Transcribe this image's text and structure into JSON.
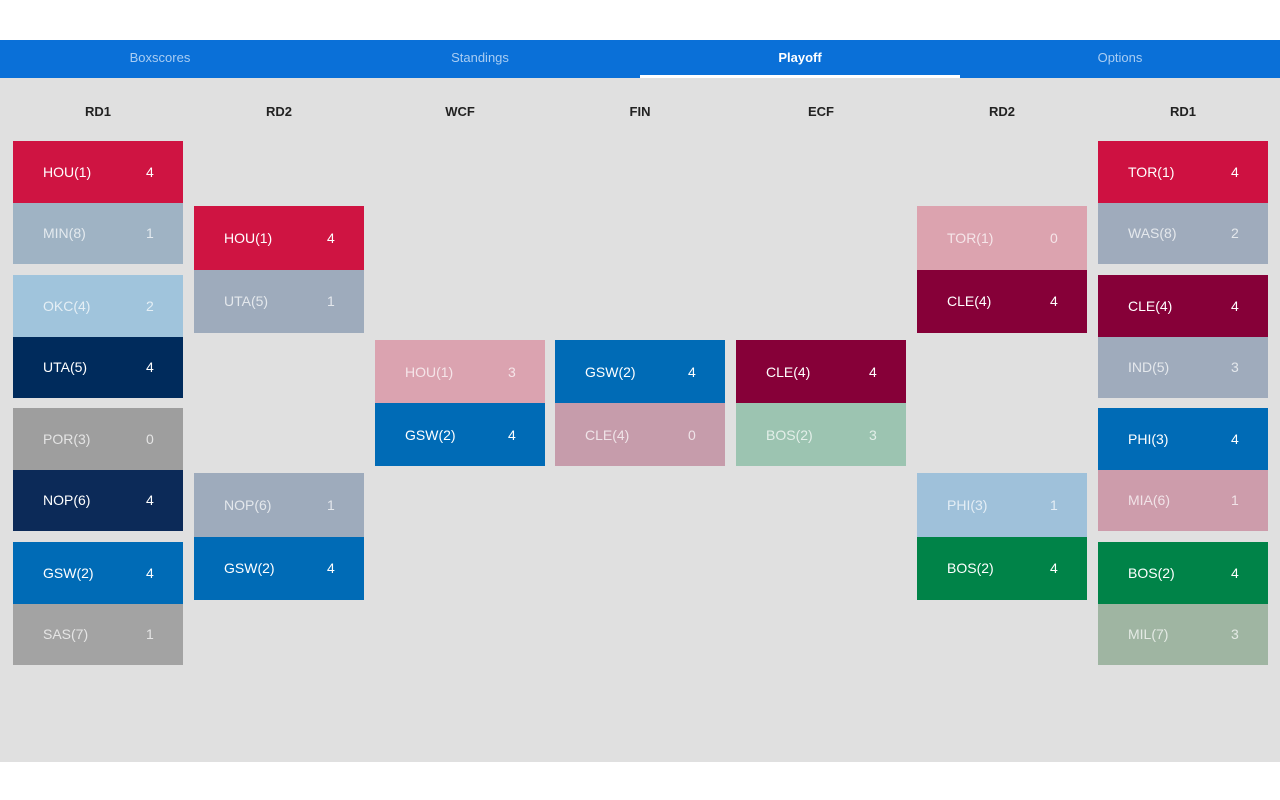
{
  "tabs": [
    {
      "label": "Boxscores",
      "active": false
    },
    {
      "label": "Standings",
      "active": false
    },
    {
      "label": "Playoff",
      "active": true
    },
    {
      "label": "Options",
      "active": false
    }
  ],
  "columns": [
    {
      "header": "RD1",
      "matchups": [
        {
          "teams": [
            {
              "name": "HOU(1)",
              "score": 4,
              "color": "#cf1442",
              "winner": true
            },
            {
              "name": "MIN(8)",
              "score": 1,
              "color": "#9fb3c4",
              "winner": false
            }
          ]
        },
        {
          "teams": [
            {
              "name": "OKC(4)",
              "score": 2,
              "color": "#a0c4dc",
              "winner": false
            },
            {
              "name": "UTA(5)",
              "score": 4,
              "color": "#002b5c",
              "winner": true
            }
          ]
        },
        {
          "teams": [
            {
              "name": "POR(3)",
              "score": 0,
              "color": "#9e9e9e",
              "winner": false
            },
            {
              "name": "NOP(6)",
              "score": 4,
              "color": "#0c2a58",
              "winner": true
            }
          ]
        },
        {
          "teams": [
            {
              "name": "GSW(2)",
              "score": 4,
              "color": "#006bb6",
              "winner": true
            },
            {
              "name": "SAS(7)",
              "score": 1,
              "color": "#a3a3a3",
              "winner": false
            }
          ]
        }
      ]
    },
    {
      "header": "RD2",
      "matchups": [
        {
          "teams": [
            {
              "name": "HOU(1)",
              "score": 4,
              "color": "#cf1442",
              "winner": true
            },
            {
              "name": "UTA(5)",
              "score": 1,
              "color": "#9eabbc",
              "winner": false
            }
          ]
        },
        {
          "teams": [
            {
              "name": "NOP(6)",
              "score": 1,
              "color": "#9eabbc",
              "winner": false
            },
            {
              "name": "GSW(2)",
              "score": 4,
              "color": "#006bb6",
              "winner": true
            }
          ]
        }
      ]
    },
    {
      "header": "WCF",
      "matchups": [
        {
          "teams": [
            {
              "name": "HOU(1)",
              "score": 3,
              "color": "#dba3b0",
              "winner": false
            },
            {
              "name": "GSW(2)",
              "score": 4,
              "color": "#006bb6",
              "winner": true
            }
          ]
        }
      ]
    },
    {
      "header": "FIN",
      "matchups": [
        {
          "teams": [
            {
              "name": "GSW(2)",
              "score": 4,
              "color": "#006bb6",
              "winner": true
            },
            {
              "name": "CLE(4)",
              "score": 0,
              "color": "#c69cab",
              "winner": false
            }
          ]
        }
      ]
    },
    {
      "header": "ECF",
      "matchups": [
        {
          "teams": [
            {
              "name": "CLE(4)",
              "score": 4,
              "color": "#860038",
              "winner": true
            },
            {
              "name": "BOS(2)",
              "score": 3,
              "color": "#9cc4b1",
              "winner": false
            }
          ]
        }
      ]
    },
    {
      "header": "RD2",
      "matchups": [
        {
          "teams": [
            {
              "name": "TOR(1)",
              "score": 0,
              "color": "#dca3af",
              "winner": false
            },
            {
              "name": "CLE(4)",
              "score": 4,
              "color": "#860038",
              "winner": true
            }
          ]
        },
        {
          "teams": [
            {
              "name": "PHI(3)",
              "score": 1,
              "color": "#9fc1da",
              "winner": false
            },
            {
              "name": "BOS(2)",
              "score": 4,
              "color": "#008348",
              "winner": true
            }
          ]
        }
      ]
    },
    {
      "header": "RD1",
      "matchups": [
        {
          "teams": [
            {
              "name": "TOR(1)",
              "score": 4,
              "color": "#ce1141",
              "winner": true
            },
            {
              "name": "WAS(8)",
              "score": 2,
              "color": "#9fabbc",
              "winner": false
            }
          ]
        },
        {
          "teams": [
            {
              "name": "CLE(4)",
              "score": 4,
              "color": "#860038",
              "winner": true
            },
            {
              "name": "IND(5)",
              "score": 3,
              "color": "#9fabbc",
              "winner": false
            }
          ]
        },
        {
          "teams": [
            {
              "name": "PHI(3)",
              "score": 4,
              "color": "#006bb6",
              "winner": true
            },
            {
              "name": "MIA(6)",
              "score": 1,
              "color": "#cd9cab",
              "winner": false
            }
          ]
        },
        {
          "teams": [
            {
              "name": "BOS(2)",
              "score": 4,
              "color": "#008348",
              "winner": true
            },
            {
              "name": "MIL(7)",
              "score": 3,
              "color": "#9fb5a2",
              "winner": false
            }
          ]
        }
      ]
    }
  ]
}
